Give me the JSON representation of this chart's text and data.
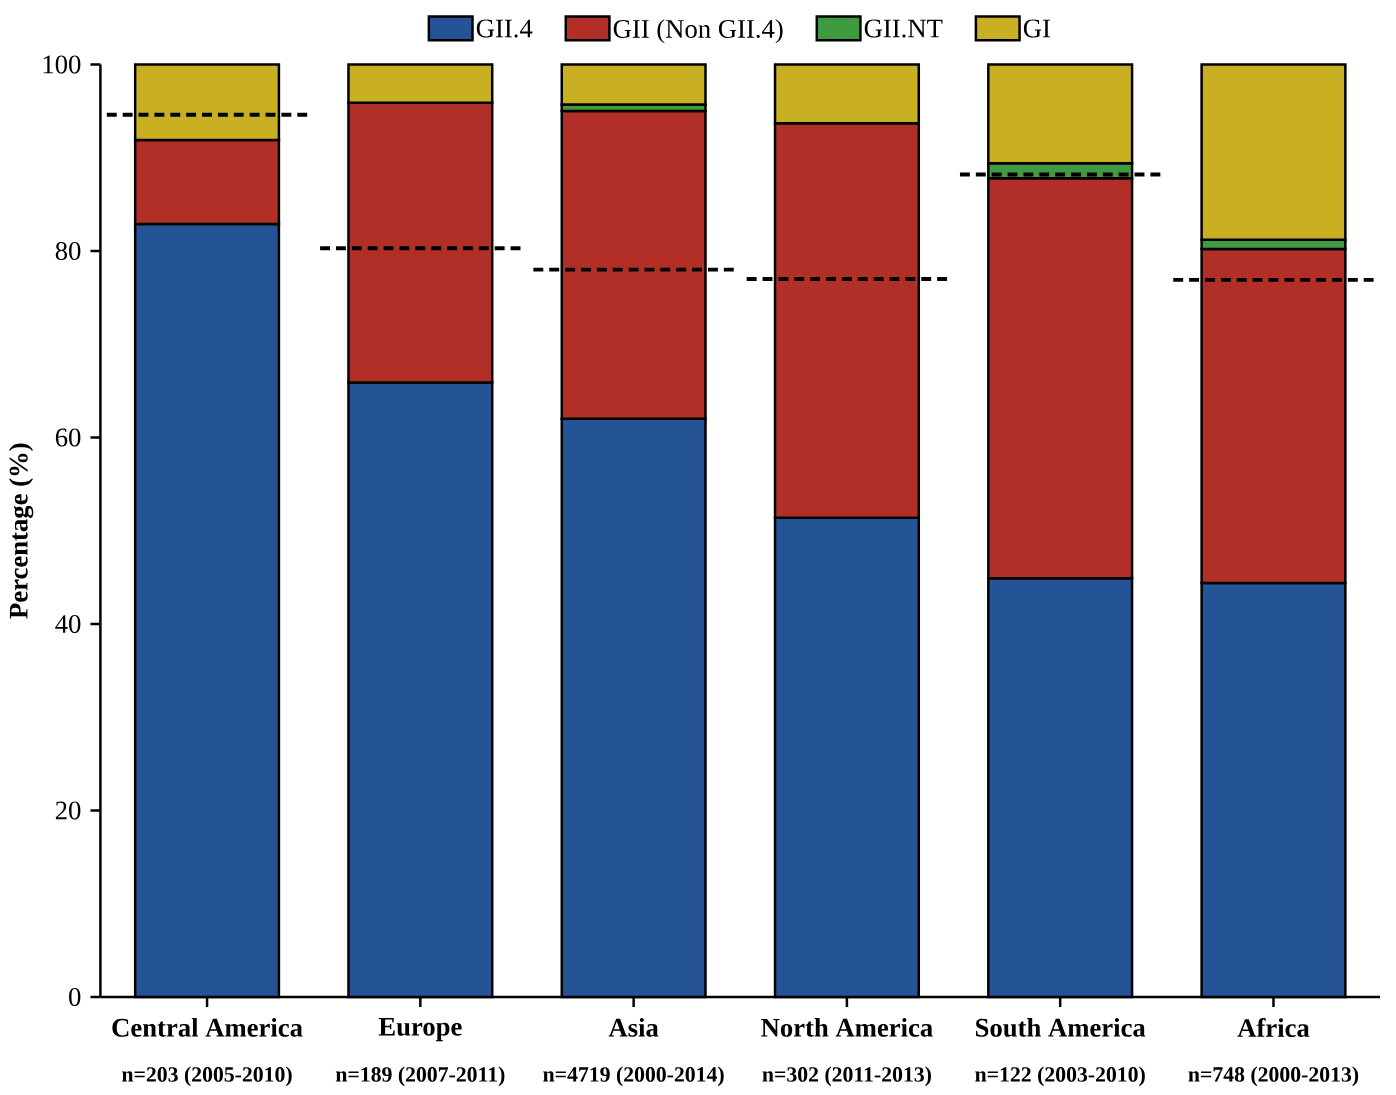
{
  "chart_data": {
    "type": "bar",
    "stacked": true,
    "ylabel": "**Percentage (%)**",
    "categories": [
      "Central America",
      "Europe",
      "Asia",
      "North America",
      "South America",
      "Africa"
    ],
    "series": [
      {
        "name": "GII.4",
        "color": "#245396",
        "values": [
          82.9,
          65.9,
          62.0,
          51.4,
          44.9,
          44.4
        ]
      },
      {
        "name": "GII (Non GII.4)",
        "color": "#b22f28",
        "values": [
          9.0,
          30.0,
          33.0,
          42.3,
          42.9,
          35.8
        ]
      },
      {
        "name": "GII.NT",
        "color": "#3f9a40",
        "values": [
          null,
          null,
          0.7,
          null,
          1.6,
          1.0
        ]
      },
      {
        "name": "GI",
        "color": "#c9b022",
        "values": [
          8.1,
          4.1,
          4.3,
          6.3,
          10.6,
          18.8
        ]
      }
    ],
    "ref_lines": [
      {
        "axis": "y",
        "value": 94.6,
        "color": "#000000",
        "line_style": "dashed"
      },
      {
        "axis": "y",
        "value": 80.3,
        "color": "#000000",
        "line_style": "dashed"
      },
      {
        "axis": "y",
        "value": 78.0,
        "color": "#000000",
        "line_style": "dashed"
      },
      {
        "axis": "y",
        "value": 77.0,
        "color": "#000000",
        "line_style": "dashed"
      },
      {
        "axis": "y",
        "value": 88.2,
        "color": "#000000",
        "line_style": "dashed"
      },
      {
        "axis": "y",
        "value": 76.9,
        "color": "#000000",
        "line_style": "dashed"
      }
    ],
    "ylim": [
      0,
      100
    ],
    "yticks": [
      0,
      20,
      40,
      60,
      80,
      100
    ],
    "legend": "top",
    "annotations": [
      "n=203 (2005-2010)",
      "n=189 (2007-2011)",
      "n=4719 (2000-2014)",
      "n=302 (2011-2013)",
      "n=122 (2003-2010)",
      "n=748 (2000-2013)"
    ]
  }
}
